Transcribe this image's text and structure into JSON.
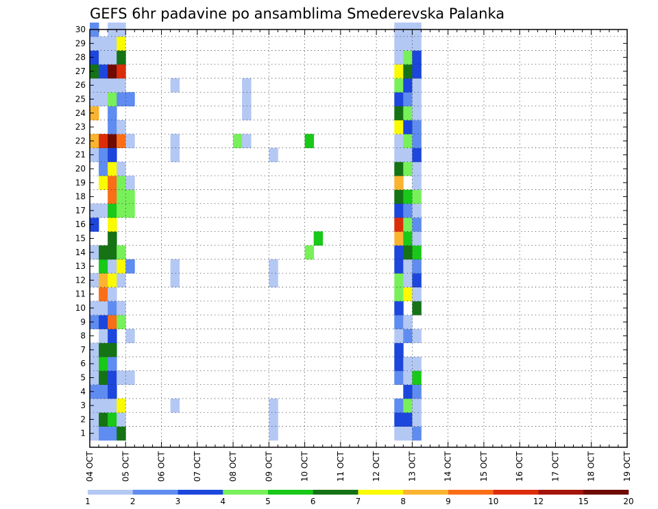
{
  "chart_data": {
    "type": "heatmap",
    "title": "GEFS 6hr padavine po ansamblima Smederevska Palanka",
    "xlabel": "",
    "ylabel": "",
    "x_ticks": [
      "04 OCT",
      "05 OCT",
      "06 OCT",
      "07 OCT",
      "08 OCT",
      "09 OCT",
      "10 OCT",
      "11 OCT",
      "12 OCT",
      "13 OCT",
      "14 OCT",
      "15 OCT",
      "16 OCT",
      "17 OCT",
      "18 OCT",
      "19 OCT"
    ],
    "y_ticks": [
      "1",
      "2",
      "3",
      "4",
      "5",
      "6",
      "7",
      "8",
      "9",
      "10",
      "11",
      "12",
      "13",
      "14",
      "15",
      "16",
      "17",
      "18",
      "19",
      "20",
      "21",
      "22",
      "23",
      "24",
      "25",
      "26",
      "27",
      "28",
      "29",
      "30"
    ],
    "xlim": [
      "04 OCT 00Z",
      "19 OCT 00Z"
    ],
    "x_step": "6h",
    "ylim": [
      0,
      30
    ],
    "grid": true,
    "legend_placement": "bottom",
    "colorbar": {
      "labels": [
        "1",
        "2",
        "3",
        "4",
        "5",
        "6",
        "7",
        "8",
        "9",
        "10",
        "12",
        "15",
        "20"
      ],
      "colors": [
        "#b4c8f4",
        "#5f8cf0",
        "#1c46dc",
        "#78f05a",
        "#19c818",
        "#157315",
        "#fafa00",
        "#fab430",
        "#fa6e18",
        "#dc2d0a",
        "#a5140a",
        "#6e0a00"
      ]
    },
    "cells": [
      [
        0,
        1,
        0
      ],
      [
        0,
        2,
        0
      ],
      [
        0,
        3,
        0
      ],
      [
        0,
        4,
        1
      ],
      [
        0,
        5,
        0
      ],
      [
        0,
        6,
        0
      ],
      [
        0,
        7,
        0
      ],
      [
        0,
        9,
        1
      ],
      [
        0,
        10,
        0
      ],
      [
        0,
        12,
        0
      ],
      [
        0,
        14,
        0
      ],
      [
        0,
        16,
        2
      ],
      [
        0,
        17,
        0
      ],
      [
        0,
        21,
        0
      ],
      [
        0,
        22,
        7
      ],
      [
        0,
        24,
        7
      ],
      [
        0,
        25,
        0
      ],
      [
        0,
        26,
        0
      ],
      [
        0,
        27,
        5
      ],
      [
        0,
        28,
        2
      ],
      [
        0,
        29,
        0
      ],
      [
        0,
        30,
        1
      ],
      [
        1,
        1,
        1
      ],
      [
        1,
        2,
        5
      ],
      [
        1,
        3,
        0
      ],
      [
        1,
        4,
        1
      ],
      [
        1,
        5,
        5
      ],
      [
        1,
        6,
        4
      ],
      [
        1,
        7,
        5
      ],
      [
        1,
        8,
        0
      ],
      [
        1,
        9,
        2
      ],
      [
        1,
        10,
        0
      ],
      [
        1,
        11,
        8
      ],
      [
        1,
        12,
        7
      ],
      [
        1,
        13,
        4
      ],
      [
        1,
        14,
        5
      ],
      [
        1,
        17,
        0
      ],
      [
        1,
        19,
        6
      ],
      [
        1,
        20,
        1
      ],
      [
        1,
        21,
        1
      ],
      [
        1,
        22,
        9
      ],
      [
        1,
        25,
        0
      ],
      [
        1,
        26,
        0
      ],
      [
        1,
        27,
        2
      ],
      [
        1,
        28,
        0
      ],
      [
        1,
        29,
        0
      ],
      [
        2,
        1,
        1
      ],
      [
        2,
        2,
        4
      ],
      [
        2,
        3,
        0
      ],
      [
        2,
        4,
        2
      ],
      [
        2,
        5,
        2
      ],
      [
        2,
        6,
        1
      ],
      [
        2,
        7,
        5
      ],
      [
        2,
        8,
        2
      ],
      [
        2,
        9,
        8
      ],
      [
        2,
        10,
        1
      ],
      [
        2,
        11,
        0
      ],
      [
        2,
        12,
        6
      ],
      [
        2,
        13,
        0
      ],
      [
        2,
        14,
        5
      ],
      [
        2,
        15,
        5
      ],
      [
        2,
        16,
        6
      ],
      [
        2,
        17,
        4
      ],
      [
        2,
        18,
        8
      ],
      [
        2,
        19,
        8
      ],
      [
        2,
        20,
        6
      ],
      [
        2,
        21,
        2
      ],
      [
        2,
        22,
        11
      ],
      [
        2,
        23,
        1
      ],
      [
        2,
        24,
        1
      ],
      [
        2,
        25,
        3
      ],
      [
        2,
        26,
        0
      ],
      [
        2,
        27,
        11
      ],
      [
        2,
        28,
        0
      ],
      [
        2,
        29,
        0
      ],
      [
        2,
        30,
        0
      ],
      [
        3,
        1,
        5
      ],
      [
        3,
        2,
        0
      ],
      [
        3,
        3,
        6
      ],
      [
        3,
        5,
        0
      ],
      [
        3,
        9,
        3
      ],
      [
        3,
        10,
        0
      ],
      [
        3,
        12,
        0
      ],
      [
        3,
        13,
        6
      ],
      [
        3,
        14,
        3
      ],
      [
        3,
        17,
        3
      ],
      [
        3,
        18,
        3
      ],
      [
        3,
        19,
        3
      ],
      [
        3,
        20,
        0
      ],
      [
        3,
        22,
        8
      ],
      [
        3,
        23,
        0
      ],
      [
        3,
        25,
        1
      ],
      [
        3,
        26,
        0
      ],
      [
        3,
        27,
        9
      ],
      [
        3,
        28,
        5
      ],
      [
        3,
        29,
        6
      ],
      [
        3,
        30,
        0
      ],
      [
        4,
        5,
        0
      ],
      [
        4,
        8,
        0
      ],
      [
        4,
        13,
        1
      ],
      [
        4,
        17,
        3
      ],
      [
        4,
        18,
        3
      ],
      [
        4,
        19,
        0
      ],
      [
        4,
        22,
        0
      ],
      [
        4,
        25,
        1
      ],
      [
        9,
        3,
        0
      ],
      [
        9,
        12,
        0
      ],
      [
        9,
        13,
        0
      ],
      [
        9,
        21,
        0
      ],
      [
        9,
        22,
        0
      ],
      [
        9,
        26,
        0
      ],
      [
        16,
        22,
        3
      ],
      [
        17,
        22,
        0
      ],
      [
        17,
        24,
        0
      ],
      [
        17,
        25,
        0
      ],
      [
        17,
        26,
        0
      ],
      [
        20,
        1,
        0
      ],
      [
        20,
        2,
        0
      ],
      [
        20,
        3,
        0
      ],
      [
        20,
        12,
        0
      ],
      [
        20,
        13,
        0
      ],
      [
        20,
        21,
        0
      ],
      [
        24,
        14,
        3
      ],
      [
        24,
        22,
        4
      ],
      [
        25,
        15,
        4
      ],
      [
        34,
        1,
        0
      ],
      [
        34,
        2,
        2
      ],
      [
        34,
        3,
        1
      ],
      [
        34,
        5,
        1
      ],
      [
        34,
        6,
        2
      ],
      [
        34,
        7,
        2
      ],
      [
        34,
        8,
        0
      ],
      [
        34,
        9,
        1
      ],
      [
        34,
        10,
        2
      ],
      [
        34,
        11,
        3
      ],
      [
        34,
        12,
        3
      ],
      [
        34,
        13,
        2
      ],
      [
        34,
        14,
        2
      ],
      [
        34,
        15,
        7
      ],
      [
        34,
        16,
        9
      ],
      [
        34,
        17,
        2
      ],
      [
        34,
        18,
        5
      ],
      [
        34,
        19,
        7
      ],
      [
        34,
        20,
        5
      ],
      [
        34,
        21,
        0
      ],
      [
        34,
        22,
        0
      ],
      [
        34,
        23,
        6
      ],
      [
        34,
        24,
        5
      ],
      [
        34,
        25,
        2
      ],
      [
        34,
        26,
        3
      ],
      [
        34,
        27,
        6
      ],
      [
        34,
        28,
        0
      ],
      [
        34,
        29,
        0
      ],
      [
        34,
        30,
        0
      ],
      [
        35,
        1,
        0
      ],
      [
        35,
        2,
        2
      ],
      [
        35,
        3,
        3
      ],
      [
        35,
        4,
        2
      ],
      [
        35,
        5,
        0
      ],
      [
        35,
        6,
        0
      ],
      [
        35,
        8,
        1
      ],
      [
        35,
        9,
        0
      ],
      [
        35,
        11,
        6
      ],
      [
        35,
        12,
        0
      ],
      [
        35,
        13,
        0
      ],
      [
        35,
        14,
        5
      ],
      [
        35,
        15,
        4
      ],
      [
        35,
        16,
        3
      ],
      [
        35,
        17,
        1
      ],
      [
        35,
        18,
        4
      ],
      [
        35,
        20,
        3
      ],
      [
        35,
        21,
        0
      ],
      [
        35,
        22,
        3
      ],
      [
        35,
        23,
        2
      ],
      [
        35,
        24,
        3
      ],
      [
        35,
        25,
        1
      ],
      [
        35,
        26,
        2
      ],
      [
        35,
        27,
        5
      ],
      [
        35,
        28,
        3
      ],
      [
        35,
        29,
        0
      ],
      [
        35,
        30,
        0
      ],
      [
        36,
        1,
        1
      ],
      [
        36,
        2,
        0
      ],
      [
        36,
        3,
        0
      ],
      [
        36,
        4,
        1
      ],
      [
        36,
        5,
        4
      ],
      [
        36,
        6,
        0
      ],
      [
        36,
        8,
        0
      ],
      [
        36,
        10,
        5
      ],
      [
        36,
        11,
        0
      ],
      [
        36,
        12,
        2
      ],
      [
        36,
        13,
        1
      ],
      [
        36,
        14,
        4
      ],
      [
        36,
        15,
        0
      ],
      [
        36,
        16,
        1
      ],
      [
        36,
        17,
        0
      ],
      [
        36,
        18,
        3
      ],
      [
        36,
        19,
        0
      ],
      [
        36,
        20,
        0
      ],
      [
        36,
        21,
        2
      ],
      [
        36,
        22,
        1
      ],
      [
        36,
        23,
        1
      ],
      [
        36,
        24,
        0
      ],
      [
        36,
        25,
        0
      ],
      [
        36,
        26,
        0
      ],
      [
        36,
        27,
        2
      ],
      [
        36,
        28,
        2
      ],
      [
        36,
        29,
        0
      ],
      [
        36,
        30,
        0
      ]
    ]
  }
}
